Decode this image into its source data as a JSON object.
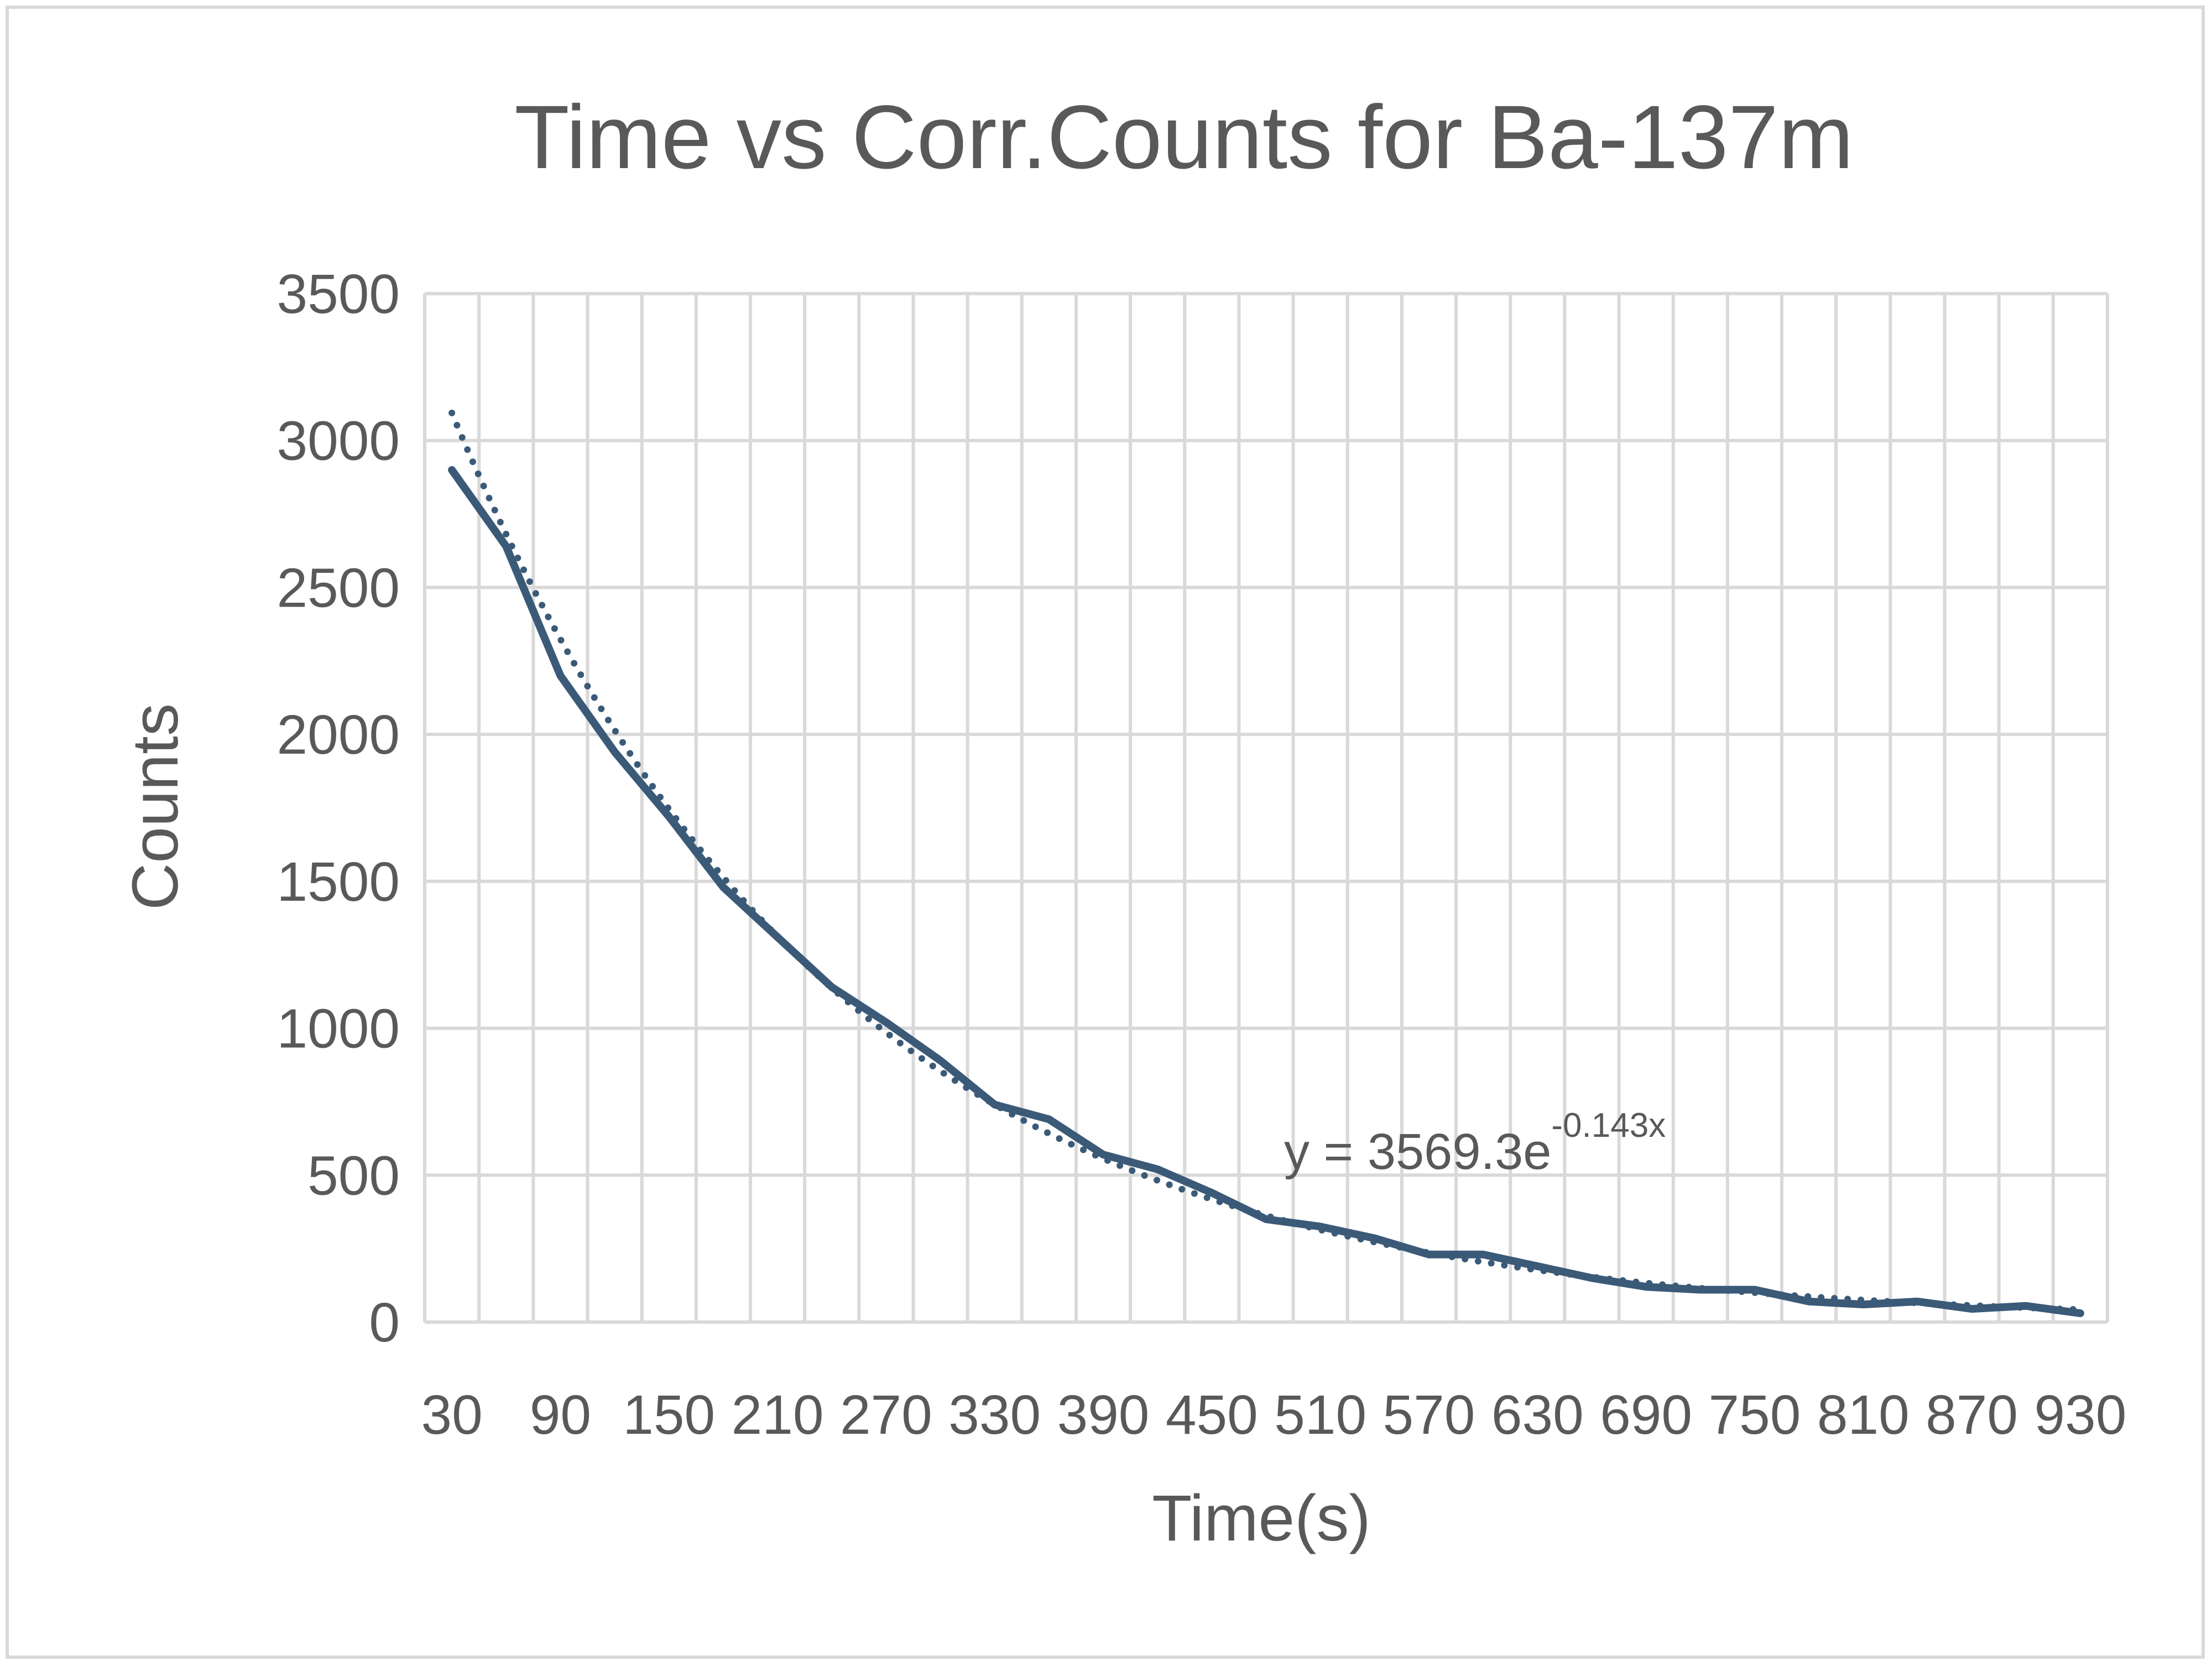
{
  "chart_data": {
    "type": "line",
    "title": "Time vs Corr.Counts for Ba-137m",
    "xlabel": "Time(s)",
    "ylabel": "Counts",
    "ylim": [
      0,
      3500
    ],
    "yticks": [
      "0",
      "500",
      "1000",
      "1500",
      "2000",
      "2500",
      "3000",
      "3500"
    ],
    "x": [
      30,
      60,
      90,
      120,
      150,
      180,
      210,
      240,
      270,
      300,
      330,
      360,
      390,
      420,
      450,
      480,
      510,
      540,
      570,
      600,
      630,
      660,
      690,
      720,
      750,
      780,
      810,
      840,
      870,
      900,
      930
    ],
    "xtick_labels": [
      "30",
      "90",
      "150",
      "210",
      "270",
      "330",
      "390",
      "450",
      "510",
      "570",
      "630",
      "690",
      "750",
      "810",
      "870",
      "930"
    ],
    "series": [
      {
        "values": [
          2900,
          2640,
          2200,
          1940,
          1720,
          1480,
          1310,
          1140,
          1020,
          890,
          740,
          690,
          570,
          520,
          440,
          350,
          325,
          285,
          230,
          230,
          190,
          150,
          120,
          110,
          110,
          70,
          60,
          70,
          45,
          55,
          30
        ],
        "color": "#3b5a78",
        "style": "solid"
      }
    ],
    "trendline": {
      "type": "exponential",
      "a": 3569.3,
      "b": -0.143,
      "color": "#3b5a78",
      "style": "dotted",
      "equation_prefix": "y = 3569.3e",
      "equation_exponent": "-0.143x"
    },
    "grid": true,
    "legend": "none"
  }
}
